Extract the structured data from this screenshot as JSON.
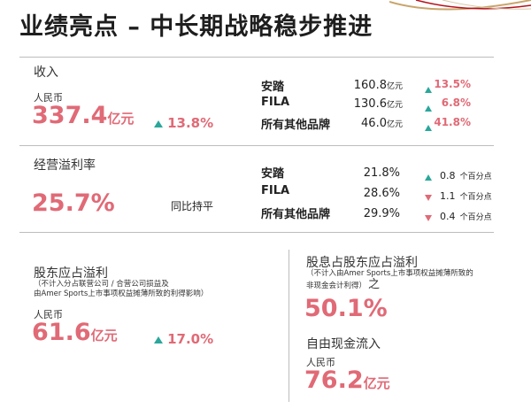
{
  "title": "业绩亮点 – 中长期战略稳步推进",
  "revenue": {
    "label": "收入",
    "currency": "人民币",
    "value": "337.4",
    "unit": "亿元",
    "growth": "13.8%",
    "brands": [
      {
        "name": "安踏",
        "value": "160.8",
        "unit": "亿元",
        "growth": "13.5%"
      },
      {
        "name": "FILA",
        "value": "130.6",
        "unit": "亿元",
        "growth": "6.8%"
      },
      {
        "name": "所有其他品牌",
        "value": "46.0",
        "unit": "亿元",
        "growth": "41.8%"
      }
    ]
  },
  "op_margin": {
    "label": "经营溢利率",
    "value": "25.7%",
    "note": "同比持平",
    "brands": [
      {
        "name": "安踏",
        "value": "21.8%",
        "direction": "up",
        "change": "0.8",
        "unit": "个百分点"
      },
      {
        "name": "FILA",
        "value": "28.6%",
        "direction": "down",
        "change": "1.1",
        "unit": "个百分点"
      },
      {
        "name": "所有其他品牌",
        "value": "29.9%",
        "direction": "down",
        "change": "0.4",
        "unit": "个百分点"
      }
    ]
  },
  "profit": {
    "label": "股东应占溢利",
    "note_line1": "（不计入分占联营公司 / 合营公司损益及",
    "note_line2": "由Amer Sports上市事项权益摊薄所致的利得影响）",
    "currency": "人民币",
    "value": "61.6",
    "unit": "亿元",
    "growth": "17.0%"
  },
  "dividend": {
    "label": "股息占股东应占溢利",
    "note_line1": "（不计入由Amer Sports上市事项权益摊薄所致的",
    "note_line2": "非现金会计利得）",
    "suffix": "之",
    "value": "50.1%"
  },
  "fcf": {
    "label": "自由现金流入",
    "currency": "人民币",
    "value": "76.2",
    "unit": "亿元"
  },
  "colors": {
    "accent": "#e06a76",
    "up_arrow": "#2aa79b",
    "divider": "#bdbdbd",
    "decor": "#c9a46b"
  }
}
